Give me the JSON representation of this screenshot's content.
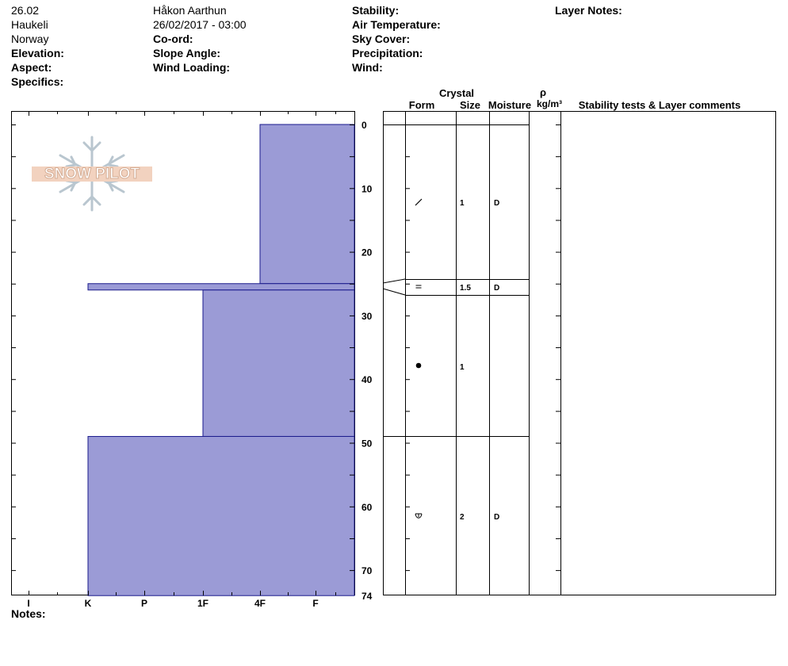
{
  "header": {
    "col1": [
      "26.02",
      "Haukeli",
      "Norway"
    ],
    "col1_labels": {
      "elevation": "Elevation:",
      "aspect": "Aspect:",
      "specifics": "Specifics:"
    },
    "col2": {
      "observer": "Håkon Aarthun",
      "datetime": "26/02/2017 - 03:00"
    },
    "col2_labels": {
      "coord": "Co-ord:",
      "slope": "Slope Angle:",
      "wind_loading": "Wind Loading:"
    },
    "col3_labels": {
      "stability": "Stability:",
      "air_temp": "Air Temperature:",
      "sky": "Sky Cover:",
      "precip": "Precipitation:",
      "wind": "Wind:"
    },
    "col4_labels": {
      "layer_notes": "Layer Notes:"
    }
  },
  "watermark": {
    "text": "SNOW PILOT"
  },
  "footer": {
    "notes_label": "Notes:"
  },
  "table": {
    "headers": {
      "crystal": "Crystal",
      "form": "Form",
      "size": "Size",
      "moisture": "Moisture",
      "rho": "ρ",
      "density": "kg/m³",
      "comments": "Stability tests & Layer comments"
    }
  },
  "chart_data": {
    "type": "bar",
    "orientation": "horizontal",
    "depth_axis": {
      "ticks": [
        0,
        10,
        20,
        30,
        40,
        50,
        60,
        70,
        74
      ],
      "range": [
        0,
        74
      ],
      "minor_ticks_every": 5
    },
    "hardness_axis": {
      "ticks": [
        "I",
        "K",
        "P",
        "1F",
        "4F",
        "F"
      ]
    },
    "layers": [
      {
        "top": 0,
        "bottom": 25,
        "hardness": "4F",
        "form": "/",
        "size": "1",
        "moisture": "D"
      },
      {
        "top": 25,
        "bottom": 26,
        "hardness": "K",
        "form": "=",
        "size": "1.5",
        "moisture": "D"
      },
      {
        "top": 26,
        "bottom": 49,
        "hardness": "1F",
        "form": "●",
        "size": "1",
        "moisture": ""
      },
      {
        "top": 49,
        "bottom": 74,
        "hardness": "K",
        "form": "ʊ",
        "size": "2",
        "moisture": "D"
      }
    ],
    "colors": {
      "bar": "#9b9bd6",
      "bar_edge": "#1a1a8c"
    }
  }
}
